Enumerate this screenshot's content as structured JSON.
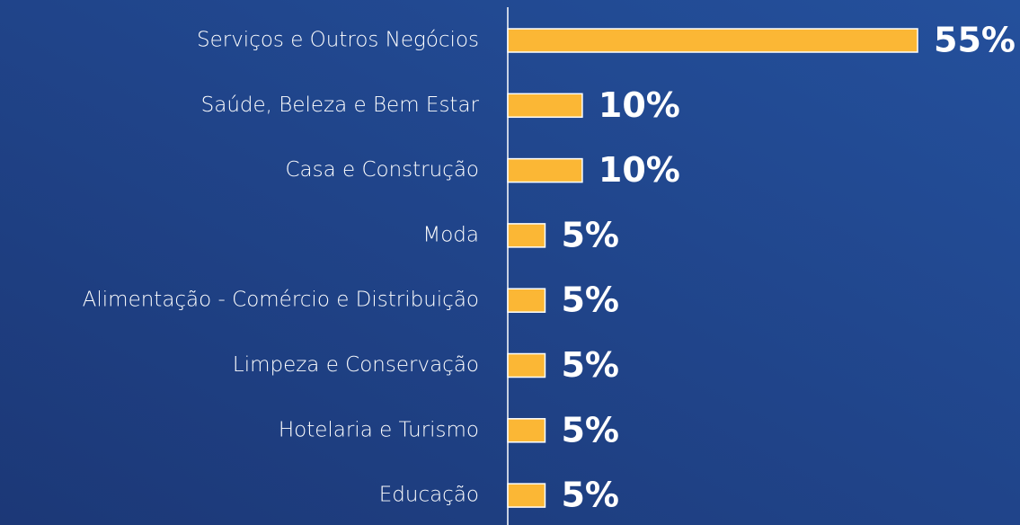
{
  "chart_data": {
    "type": "bar",
    "orientation": "horizontal",
    "categories": [
      "Serviços e Outros Negócios",
      "Saúde, Beleza e Bem Estar",
      "Casa e Construção",
      "Moda",
      "Alimentação - Comércio e Distribuição",
      "Limpeza e Conservação",
      "Hotelaria e Turismo",
      "Educação"
    ],
    "values": [
      55,
      10,
      10,
      5,
      5,
      5,
      5,
      5
    ],
    "value_labels": [
      "55%",
      "10%",
      "10%",
      "5%",
      "5%",
      "5%",
      "5%",
      "5%"
    ],
    "color": "#fbb735"
  }
}
